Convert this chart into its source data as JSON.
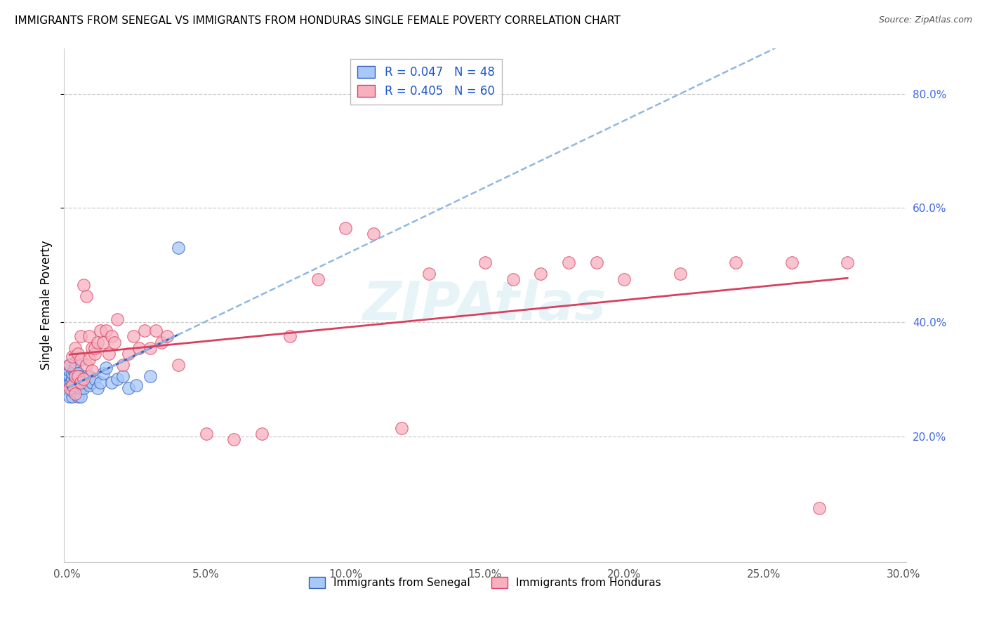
{
  "title": "IMMIGRANTS FROM SENEGAL VS IMMIGRANTS FROM HONDURAS SINGLE FEMALE POVERTY CORRELATION CHART",
  "source": "Source: ZipAtlas.com",
  "ylabel": "Single Female Poverty",
  "xlabel_legend1": "Immigrants from Senegal",
  "xlabel_legend2": "Immigrants from Honduras",
  "r_senegal": 0.047,
  "n_senegal": 48,
  "r_honduras": 0.405,
  "n_honduras": 60,
  "xlim": [
    -0.001,
    0.301
  ],
  "ylim": [
    -0.02,
    0.88
  ],
  "xticks": [
    0.0,
    0.05,
    0.1,
    0.15,
    0.2,
    0.25,
    0.3
  ],
  "yticks": [
    0.2,
    0.4,
    0.6,
    0.8
  ],
  "color_senegal": "#a8c8f8",
  "color_honduras": "#f8b0c0",
  "line_color_senegal": "#3060c0",
  "line_color_honduras": "#d84060",
  "line_color_senegal_dashed": "#90b8e0",
  "watermark": "ZIPAtlas",
  "senegal_x": [
    0.0005,
    0.0005,
    0.001,
    0.001,
    0.001,
    0.001,
    0.001,
    0.0015,
    0.0015,
    0.002,
    0.002,
    0.002,
    0.002,
    0.002,
    0.0025,
    0.003,
    0.003,
    0.003,
    0.003,
    0.003,
    0.003,
    0.004,
    0.004,
    0.004,
    0.004,
    0.0045,
    0.005,
    0.005,
    0.005,
    0.006,
    0.006,
    0.007,
    0.007,
    0.008,
    0.008,
    0.009,
    0.01,
    0.011,
    0.012,
    0.013,
    0.014,
    0.016,
    0.018,
    0.02,
    0.022,
    0.025,
    0.03,
    0.04
  ],
  "senegal_y": [
    0.29,
    0.31,
    0.27,
    0.295,
    0.305,
    0.315,
    0.325,
    0.285,
    0.295,
    0.27,
    0.28,
    0.29,
    0.3,
    0.31,
    0.315,
    0.28,
    0.29,
    0.3,
    0.31,
    0.32,
    0.33,
    0.27,
    0.285,
    0.295,
    0.31,
    0.305,
    0.27,
    0.285,
    0.295,
    0.285,
    0.3,
    0.295,
    0.305,
    0.29,
    0.305,
    0.295,
    0.3,
    0.285,
    0.295,
    0.31,
    0.32,
    0.295,
    0.3,
    0.305,
    0.285,
    0.29,
    0.305,
    0.53
  ],
  "honduras_x": [
    0.001,
    0.001,
    0.002,
    0.002,
    0.003,
    0.003,
    0.003,
    0.004,
    0.004,
    0.005,
    0.005,
    0.005,
    0.006,
    0.006,
    0.007,
    0.007,
    0.008,
    0.008,
    0.009,
    0.009,
    0.01,
    0.01,
    0.011,
    0.012,
    0.013,
    0.014,
    0.015,
    0.016,
    0.017,
    0.018,
    0.02,
    0.022,
    0.024,
    0.026,
    0.028,
    0.03,
    0.032,
    0.034,
    0.036,
    0.04,
    0.05,
    0.06,
    0.07,
    0.08,
    0.09,
    0.1,
    0.11,
    0.12,
    0.13,
    0.15,
    0.16,
    0.17,
    0.18,
    0.19,
    0.2,
    0.22,
    0.24,
    0.26,
    0.27,
    0.28
  ],
  "honduras_y": [
    0.285,
    0.325,
    0.29,
    0.34,
    0.275,
    0.305,
    0.355,
    0.305,
    0.345,
    0.295,
    0.335,
    0.375,
    0.3,
    0.465,
    0.325,
    0.445,
    0.335,
    0.375,
    0.355,
    0.315,
    0.345,
    0.355,
    0.365,
    0.385,
    0.365,
    0.385,
    0.345,
    0.375,
    0.365,
    0.405,
    0.325,
    0.345,
    0.375,
    0.355,
    0.385,
    0.355,
    0.385,
    0.365,
    0.375,
    0.325,
    0.205,
    0.195,
    0.205,
    0.375,
    0.475,
    0.565,
    0.555,
    0.215,
    0.485,
    0.505,
    0.475,
    0.485,
    0.505,
    0.505,
    0.475,
    0.485,
    0.505,
    0.505,
    0.075,
    0.505
  ]
}
